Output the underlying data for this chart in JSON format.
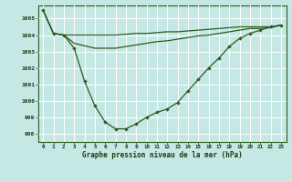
{
  "background_color": "#c5e8e5",
  "grid_color": "#b0d8d5",
  "line_color": "#2d5a1e",
  "text_color": "#1a3a10",
  "xlabel": "Graphe pression niveau de la mer (hPa)",
  "ylim": [
    997.5,
    1005.8
  ],
  "xlim": [
    -0.5,
    23.5
  ],
  "yticks": [
    998,
    999,
    1000,
    1001,
    1002,
    1003,
    1004,
    1005
  ],
  "xticks": [
    0,
    1,
    2,
    3,
    4,
    5,
    6,
    7,
    8,
    9,
    10,
    11,
    12,
    13,
    14,
    15,
    16,
    17,
    18,
    19,
    20,
    21,
    22,
    23
  ],
  "line_main": [
    1005.5,
    1004.1,
    1004.0,
    1003.2,
    1001.2,
    999.7,
    998.7,
    998.3,
    998.3,
    998.6,
    999.0,
    999.3,
    999.5,
    999.9,
    1000.6,
    1001.3,
    1002.0,
    1002.6,
    1003.3,
    1003.8,
    1004.1,
    1004.3,
    1004.5,
    1004.6
  ],
  "line_top": [
    1005.5,
    1004.1,
    1004.0,
    1004.0,
    1004.0,
    1004.0,
    1004.0,
    1004.0,
    1004.05,
    1004.1,
    1004.1,
    1004.15,
    1004.2,
    1004.2,
    1004.25,
    1004.3,
    1004.35,
    1004.4,
    1004.45,
    1004.5,
    1004.5,
    1004.5,
    1004.5,
    1004.6
  ],
  "line_mid": [
    1005.5,
    1004.1,
    1004.0,
    1003.5,
    1003.35,
    1003.2,
    1003.2,
    1003.2,
    1003.3,
    1003.4,
    1003.5,
    1003.6,
    1003.65,
    1003.75,
    1003.85,
    1003.95,
    1004.0,
    1004.1,
    1004.2,
    1004.3,
    1004.4,
    1004.4,
    1004.45,
    1004.6
  ]
}
